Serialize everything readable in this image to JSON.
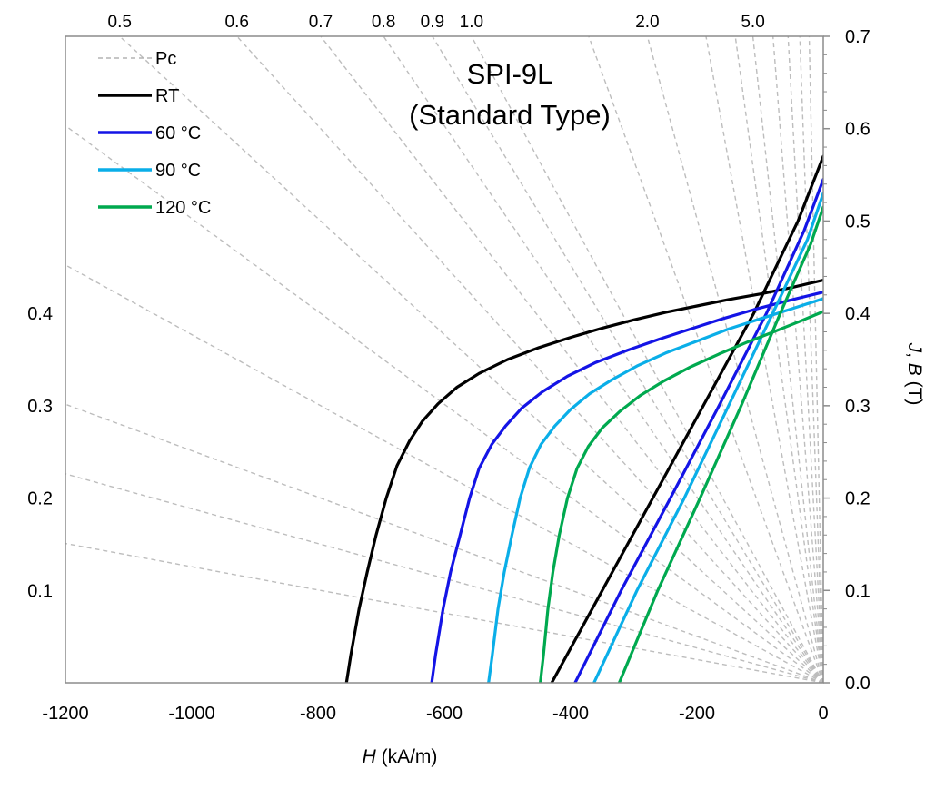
{
  "chart_data": {
    "type": "line",
    "title_lines": [
      "SPI-9L",
      "(Standard Type)"
    ],
    "xlabel_var": "H",
    "xlabel_unit": " (kA/m)",
    "ylabel_var1": "J",
    "ylabel_sep": ", ",
    "ylabel_var2": "B",
    "ylabel_unit": " (T)",
    "xlim": [
      -1200,
      0
    ],
    "ylim_right": [
      0.0,
      0.7
    ],
    "ylim_left": [
      0.0,
      0.7
    ],
    "x_ticks": [
      {
        "value": -1200,
        "label": "-1200"
      },
      {
        "value": -1000,
        "label": "-1000"
      },
      {
        "value": -800,
        "label": "-800"
      },
      {
        "value": -600,
        "label": "-600"
      },
      {
        "value": -400,
        "label": "-400"
      },
      {
        "value": -200,
        "label": "-200"
      },
      {
        "value": 0,
        "label": "0"
      }
    ],
    "y_right_ticks": [
      {
        "value": 0.0,
        "label": "0.0"
      },
      {
        "value": 0.1,
        "label": "0.1"
      },
      {
        "value": 0.2,
        "label": "0.2"
      },
      {
        "value": 0.3,
        "label": "0.3"
      },
      {
        "value": 0.4,
        "label": "0.4"
      },
      {
        "value": 0.5,
        "label": "0.5"
      },
      {
        "value": 0.6,
        "label": "0.6"
      },
      {
        "value": 0.7,
        "label": "0.7"
      }
    ],
    "y_left_ticks": [
      {
        "value": 0.1,
        "label": "0.1"
      },
      {
        "value": 0.2,
        "label": "0.2"
      },
      {
        "value": 0.3,
        "label": "0.3"
      },
      {
        "value": 0.4,
        "label": "0.4"
      }
    ],
    "pc_lines": [
      {
        "pc": 0.1,
        "label": ""
      },
      {
        "pc": 0.15,
        "label": ""
      },
      {
        "pc": 0.2,
        "label": ""
      },
      {
        "pc": 0.3,
        "label": ""
      },
      {
        "pc": 0.4,
        "label": ""
      },
      {
        "pc": 0.5,
        "label": "0.5"
      },
      {
        "pc": 0.6,
        "label": "0.6"
      },
      {
        "pc": 0.7,
        "label": "0.7"
      },
      {
        "pc": 0.8,
        "label": "0.8"
      },
      {
        "pc": 0.9,
        "label": "0.9"
      },
      {
        "pc": 1.0,
        "label": "1.0"
      },
      {
        "pc": 1.5,
        "label": ""
      },
      {
        "pc": 2.0,
        "label": "2.0"
      },
      {
        "pc": 3.0,
        "label": ""
      },
      {
        "pc": 4.0,
        "label": ""
      },
      {
        "pc": 5.0,
        "label": "5.0"
      },
      {
        "pc": 7.0,
        "label": ""
      },
      {
        "pc": 10.0,
        "label": ""
      },
      {
        "pc": 15.0,
        "label": ""
      },
      {
        "pc": 25.0,
        "label": ""
      }
    ],
    "legend": [
      {
        "name": "Pc",
        "color": "#b3b3b3",
        "dashed": true
      },
      {
        "name": "RT",
        "color": "#000000",
        "dashed": false
      },
      {
        "name": "60 °C",
        "color": "#1414e6",
        "dashed": false
      },
      {
        "name": "90 °C",
        "color": "#0aaee8",
        "dashed": false
      },
      {
        "name": "120 °C",
        "color": "#00a94f",
        "dashed": false
      }
    ],
    "series": [
      {
        "name": "RT",
        "color": "#000000",
        "J": [
          [
            -755,
            0.0
          ],
          [
            -748,
            0.03
          ],
          [
            -735,
            0.08
          ],
          [
            -722,
            0.12
          ],
          [
            -708,
            0.16
          ],
          [
            -692,
            0.2
          ],
          [
            -675,
            0.235
          ],
          [
            -655,
            0.262
          ],
          [
            -635,
            0.283
          ],
          [
            -610,
            0.302
          ],
          [
            -580,
            0.32
          ],
          [
            -545,
            0.335
          ],
          [
            -500,
            0.35
          ],
          [
            -450,
            0.363
          ],
          [
            -400,
            0.374
          ],
          [
            -350,
            0.384
          ],
          [
            -300,
            0.393
          ],
          [
            -250,
            0.401
          ],
          [
            -200,
            0.408
          ],
          [
            -150,
            0.415
          ],
          [
            -100,
            0.421
          ],
          [
            -50,
            0.428
          ],
          [
            0,
            0.436
          ]
        ],
        "B": [
          [
            -430,
            0.0
          ],
          [
            -350,
            0.1
          ],
          [
            -270,
            0.2
          ],
          [
            -190,
            0.3
          ],
          [
            -110,
            0.4
          ],
          [
            -40,
            0.5
          ],
          [
            0,
            0.57
          ]
        ]
      },
      {
        "name": "60 °C",
        "color": "#1414e6",
        "J": [
          [
            -620,
            0.0
          ],
          [
            -614,
            0.03
          ],
          [
            -602,
            0.08
          ],
          [
            -590,
            0.12
          ],
          [
            -575,
            0.16
          ],
          [
            -560,
            0.2
          ],
          [
            -545,
            0.232
          ],
          [
            -525,
            0.258
          ],
          [
            -503,
            0.278
          ],
          [
            -478,
            0.297
          ],
          [
            -445,
            0.315
          ],
          [
            -405,
            0.332
          ],
          [
            -360,
            0.347
          ],
          [
            -310,
            0.36
          ],
          [
            -260,
            0.372
          ],
          [
            -210,
            0.383
          ],
          [
            -160,
            0.394
          ],
          [
            -110,
            0.404
          ],
          [
            -60,
            0.413
          ],
          [
            0,
            0.423
          ]
        ],
        "B": [
          [
            -393,
            0.0
          ],
          [
            -320,
            0.1
          ],
          [
            -242,
            0.2
          ],
          [
            -165,
            0.3
          ],
          [
            -90,
            0.4
          ],
          [
            -30,
            0.49
          ],
          [
            0,
            0.545
          ]
        ]
      },
      {
        "name": "90 °C",
        "color": "#0aaee8",
        "J": [
          [
            -530,
            0.0
          ],
          [
            -524,
            0.03
          ],
          [
            -515,
            0.08
          ],
          [
            -505,
            0.12
          ],
          [
            -493,
            0.16
          ],
          [
            -480,
            0.2
          ],
          [
            -465,
            0.233
          ],
          [
            -447,
            0.258
          ],
          [
            -425,
            0.278
          ],
          [
            -400,
            0.296
          ],
          [
            -370,
            0.313
          ],
          [
            -335,
            0.328
          ],
          [
            -295,
            0.343
          ],
          [
            -250,
            0.357
          ],
          [
            -200,
            0.37
          ],
          [
            -150,
            0.383
          ],
          [
            -100,
            0.394
          ],
          [
            -50,
            0.405
          ],
          [
            0,
            0.416
          ]
        ],
        "B": [
          [
            -363,
            0.0
          ],
          [
            -295,
            0.1
          ],
          [
            -220,
            0.2
          ],
          [
            -150,
            0.3
          ],
          [
            -80,
            0.4
          ],
          [
            -25,
            0.48
          ],
          [
            0,
            0.53
          ]
        ]
      },
      {
        "name": "120 °C",
        "color": "#00a94f",
        "J": [
          [
            -448,
            0.0
          ],
          [
            -443,
            0.03
          ],
          [
            -436,
            0.08
          ],
          [
            -428,
            0.12
          ],
          [
            -418,
            0.16
          ],
          [
            -405,
            0.2
          ],
          [
            -390,
            0.232
          ],
          [
            -372,
            0.256
          ],
          [
            -350,
            0.276
          ],
          [
            -322,
            0.294
          ],
          [
            -290,
            0.311
          ],
          [
            -252,
            0.327
          ],
          [
            -210,
            0.342
          ],
          [
            -165,
            0.356
          ],
          [
            -120,
            0.369
          ],
          [
            -75,
            0.381
          ],
          [
            -35,
            0.392
          ],
          [
            0,
            0.402
          ]
        ],
        "B": [
          [
            -323,
            0.0
          ],
          [
            -262,
            0.1
          ],
          [
            -195,
            0.2
          ],
          [
            -130,
            0.3
          ],
          [
            -68,
            0.4
          ],
          [
            -20,
            0.475
          ],
          [
            0,
            0.515
          ]
        ]
      }
    ]
  }
}
